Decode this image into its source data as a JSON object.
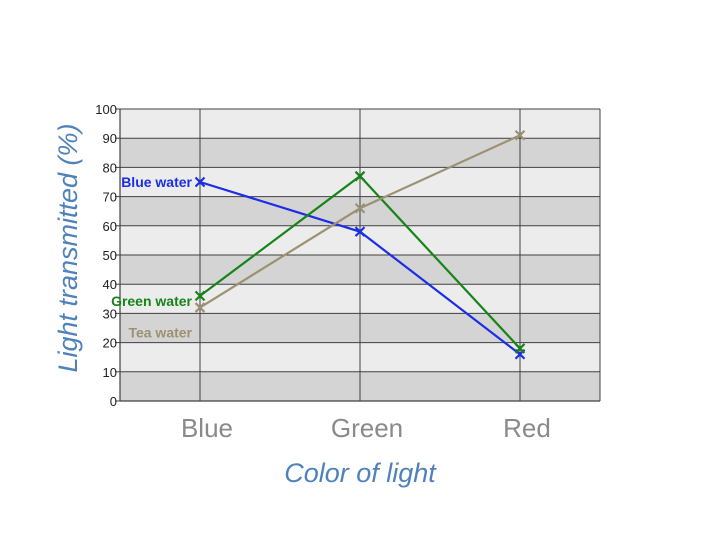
{
  "chart_data": {
    "type": "line",
    "categories": [
      "Blue",
      "Green",
      "Red"
    ],
    "xlabel": "Color of light",
    "ylabel": "Light transmitted (%)",
    "ylim": [
      0,
      100
    ],
    "yticks": [
      0,
      10,
      20,
      30,
      40,
      50,
      60,
      70,
      80,
      90,
      100
    ],
    "grid": true,
    "series": [
      {
        "name": "Blue water",
        "values": [
          75,
          58,
          16
        ],
        "color": "#1a2ee6"
      },
      {
        "name": "Green water",
        "values": [
          36,
          77,
          18
        ],
        "color": "#178417"
      },
      {
        "name": "Tea water",
        "values": [
          32,
          66,
          91
        ],
        "color": "#9b9272"
      }
    ]
  },
  "colors": {
    "band_light": "#ececec",
    "band_dark": "#d4d4d4",
    "grid_line": "#404040",
    "axis_title": "#4f81bd",
    "category_text": "#8a8a8a"
  },
  "marker": "x"
}
